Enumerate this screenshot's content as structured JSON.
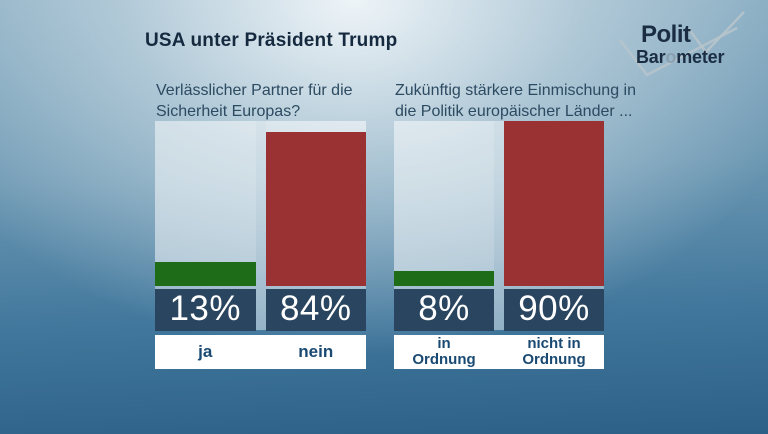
{
  "header": {
    "title": "USA unter Präsident Trump"
  },
  "logo": {
    "polit": "Polit",
    "barometer_prefix": "Bar",
    "barometer_o": "o",
    "barometer_suffix": "meter",
    "checkmark_color": "#b9c4cb"
  },
  "palette": {
    "background_top": "#e8f0f4",
    "background_bottom": "#2d6087",
    "bar_green": "#1e6b18",
    "bar_red": "#9a3132",
    "value_box_navy": "#2a455f",
    "value_text": "#ffffff",
    "category_label_blue": "#1a4a72",
    "question_text": "#2c4a61",
    "title_text": "#15293f"
  },
  "chart_data": [
    {
      "type": "bar",
      "title": "Verlässlicher Partner für die\nSicherheit Europas?",
      "categories": [
        "ja",
        "nein"
      ],
      "category_display": [
        "ja",
        "nein"
      ],
      "values": [
        13,
        84
      ],
      "value_labels": [
        "13%",
        "84%"
      ],
      "colors": [
        "#1e6b18",
        "#9a3132"
      ],
      "unit": "percent",
      "ylim": [
        0,
        100
      ],
      "track_pct": 90,
      "legend": "none",
      "grid": "off"
    },
    {
      "type": "bar",
      "title": "Zukünftig stärkere Einmischung in\ndie Politik europäischer Länder ...",
      "categories": [
        "in Ordnung",
        "nicht in Ordnung"
      ],
      "category_display": [
        "in\nOrdnung",
        "nicht in\nOrdnung"
      ],
      "values": [
        8,
        90
      ],
      "value_labels": [
        "8%",
        "90%"
      ],
      "colors": [
        "#1e6b18",
        "#9a3132"
      ],
      "unit": "percent",
      "ylim": [
        0,
        100
      ],
      "track_pct": 90,
      "legend": "none",
      "grid": "off"
    }
  ]
}
